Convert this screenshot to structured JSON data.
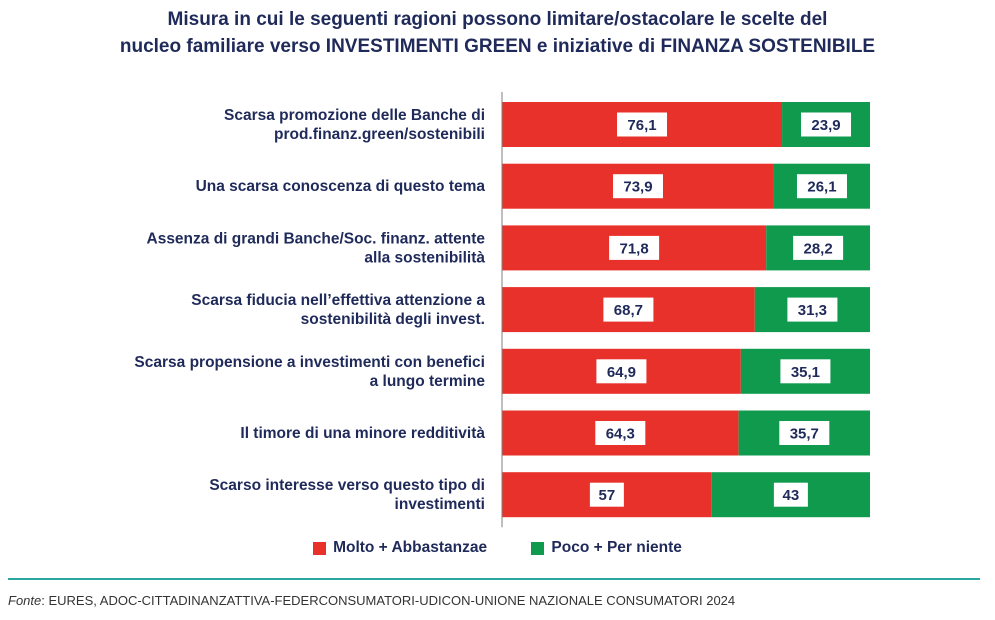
{
  "chart_data": {
    "type": "bar",
    "orientation": "horizontal",
    "stacked": true,
    "title": [
      "Misura in cui le seguenti ragioni possono limitare/ostacolare le scelte del",
      "nucleo familiare verso INVESTIMENTI GREEN e iniziative di FINANZA  SOSTENIBILE"
    ],
    "categories": [
      [
        "Scarsa promozione delle Banche di",
        "prod.finanz.green/sostenibili"
      ],
      [
        "Una scarsa conoscenza di questo tema"
      ],
      [
        "Assenza di grandi Banche/Soc. finanz. attente",
        "alla sostenibilità"
      ],
      [
        "Scarsa fiducia nell’effettiva attenzione a",
        "sostenibilità degli invest."
      ],
      [
        "Scarsa propensione a investimenti con benefici",
        "a lungo termine"
      ],
      [
        "Il timore di una minore redditività"
      ],
      [
        "Scarso interesse verso questo tipo di",
        "investimenti"
      ]
    ],
    "series": [
      {
        "name": "Molto + Abbastanzae",
        "color": "#e8312a",
        "values": [
          76.1,
          73.9,
          71.8,
          68.7,
          64.9,
          64.3,
          57
        ],
        "labels": [
          "76,1",
          "73,9",
          "71,8",
          "68,7",
          "64,9",
          "64,3",
          "57"
        ]
      },
      {
        "name": "Poco + Per niente",
        "color": "#0f9a4e",
        "values": [
          23.9,
          26.1,
          28.2,
          31.3,
          35.1,
          35.7,
          43
        ],
        "labels": [
          "23,9",
          "26,1",
          "28,2",
          "31,3",
          "35,1",
          "35,7",
          "43"
        ]
      }
    ],
    "xlim": [
      0,
      100
    ],
    "legend": "bottom"
  },
  "source": {
    "prefix": "Fonte",
    "text": ": EURES, ADOC-CITTADINANZATTIVA-FEDERCONSUMATORI-UDICON-UNIONE NAZIONALE CONSUMATORI 2024"
  },
  "colors": {
    "title": "#1f2a5a",
    "rule": "#2aa8a0",
    "axis": "#7f7f7f"
  }
}
